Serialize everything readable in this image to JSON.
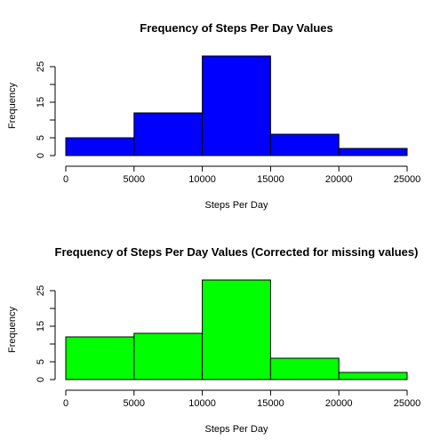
{
  "chart_data": [
    {
      "type": "bar",
      "title": "Frequency of Steps Per Day Values",
      "xlabel": "Steps Per Day",
      "ylabel": "Frequency",
      "bin_edges": [
        0,
        5000,
        10000,
        15000,
        20000,
        25000
      ],
      "values": [
        5,
        12,
        28,
        6,
        2
      ],
      "xlim": [
        0,
        25000
      ],
      "ylim": [
        0,
        28
      ],
      "x_ticks": [
        "0",
        "5000",
        "10000",
        "15000",
        "20000",
        "25000"
      ],
      "y_ticks": [
        "0",
        "5",
        "15",
        "25"
      ],
      "y_tick_values": [
        0,
        5,
        10,
        15,
        20,
        25
      ],
      "y_tick_labels": [
        "0",
        "5",
        "",
        "15",
        "",
        "25"
      ],
      "bar_color": "#0000FF",
      "grid": false
    },
    {
      "type": "bar",
      "title": "Frequency of Steps Per Day Values (Corrected for missing values)",
      "xlabel": "Steps Per Day",
      "ylabel": "Frequency",
      "bin_edges": [
        0,
        5000,
        10000,
        15000,
        20000,
        25000
      ],
      "values": [
        12,
        13,
        28,
        6,
        2
      ],
      "xlim": [
        0,
        25000
      ],
      "ylim": [
        0,
        28
      ],
      "x_ticks": [
        "0",
        "5000",
        "10000",
        "15000",
        "20000",
        "25000"
      ],
      "y_ticks": [
        "0",
        "5",
        "15",
        "25"
      ],
      "y_tick_values": [
        0,
        5,
        10,
        15,
        20,
        25
      ],
      "y_tick_labels": [
        "0",
        "5",
        "",
        "15",
        "",
        "25"
      ],
      "bar_color": "#00FF00",
      "grid": false
    }
  ]
}
